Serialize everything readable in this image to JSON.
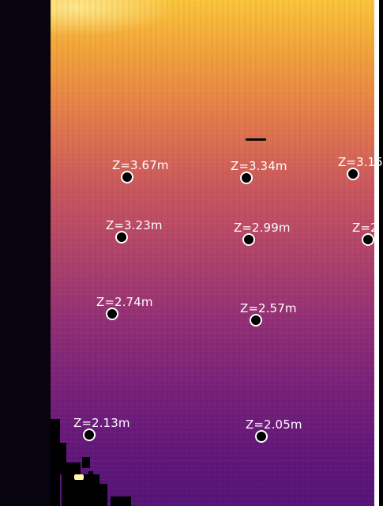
{
  "palette": {
    "colormap": "inferno",
    "background": "#000000",
    "label_color": "#ffffff",
    "marker_fill": "#000000",
    "marker_outline": "#ffffff"
  },
  "measurements": [
    {
      "label": "Z=3.67m"
    },
    {
      "label": "Z=3.34m"
    },
    {
      "label": "Z=3.15"
    },
    {
      "label": "Z=3.23m"
    },
    {
      "label": "Z=2.99m"
    },
    {
      "label": "Z=2"
    },
    {
      "label": "Z=2.74m"
    },
    {
      "label": "Z=2.57m"
    },
    {
      "label": "Z=2.13m"
    },
    {
      "label": "Z=2.05m"
    }
  ]
}
